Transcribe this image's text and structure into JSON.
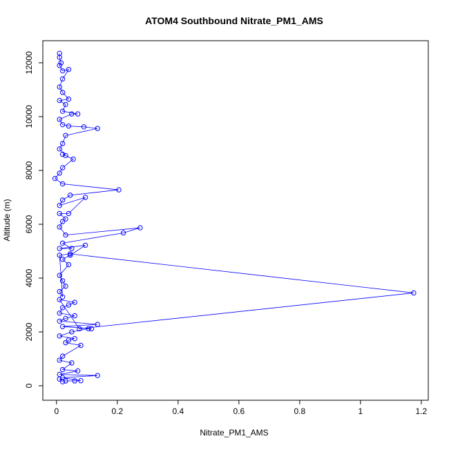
{
  "chart_data": {
    "type": "line",
    "title": "ATOM4 Southbound Nitrate_PM1_AMS",
    "x_label": "Nitrate_PM1_AMS",
    "y_label": "Altitude (m)",
    "series": [
      {
        "color": "#0000ff",
        "x": [
          0.02,
          0.01,
          0.03,
          0.06,
          0.08,
          0.02,
          0.135,
          0.01,
          0.07,
          0.02,
          0.05,
          0.01,
          0.02,
          0.08,
          0.03,
          0.04,
          0.06,
          0.01,
          0.05,
          0.105,
          0.115,
          0.02,
          0.135,
          0.01,
          0.03,
          0.06,
          0.01,
          0.02,
          0.04,
          0.06,
          0.01,
          0.075,
          1.175,
          0.045,
          0.01,
          0.02,
          0.01,
          0.03,
          0.02,
          0.01,
          0.04,
          0.02,
          0.045,
          0.095,
          0.01,
          0.05,
          0.02,
          0.22,
          0.275,
          0.03,
          0.01,
          0.02,
          0.03,
          0.01,
          0.04,
          0.095,
          0.01,
          0.02,
          0.045,
          0.205,
          0.02,
          -0.005,
          0.01,
          0.02,
          0.055,
          0.02,
          0.03,
          0.01,
          0.02,
          0.03,
          0.135,
          0.09,
          0.04,
          0.02,
          0.01,
          0.05,
          0.07,
          0.02,
          0.03,
          0.01,
          0.04,
          0.02,
          0.01,
          0.02,
          0.04,
          0.02,
          0.01,
          0.015,
          0.01,
          0.01
        ],
        "values": [
          150,
          250,
          180,
          180,
          190,
          300,
          380,
          420,
          550,
          600,
          850,
          950,
          1100,
          1500,
          1600,
          1700,
          1750,
          1850,
          2000,
          2120,
          2120,
          2200,
          2280,
          2400,
          2500,
          2600,
          2700,
          2900,
          3000,
          3100,
          3200,
          2120,
          3450,
          4900,
          4850,
          3300,
          3500,
          3700,
          3900,
          4100,
          4500,
          4700,
          4850,
          5220,
          5100,
          5100,
          5300,
          5680,
          5870,
          5600,
          5900,
          6100,
          6200,
          6400,
          6400,
          7000,
          6700,
          6900,
          7080,
          7280,
          7500,
          7700,
          7900,
          8100,
          8420,
          8600,
          8550,
          8800,
          9000,
          9300,
          9560,
          9620,
          9650,
          9700,
          9900,
          10100,
          10100,
          10200,
          10450,
          10600,
          10650,
          10900,
          11100,
          11400,
          11750,
          11700,
          11900,
          12000,
          12200,
          12350
        ]
      }
    ],
    "xlim": [
      -0.045,
      1.223
    ],
    "ylim": [
      -538,
      12820
    ],
    "xticks": [
      0.0,
      0.2,
      0.4,
      0.6,
      0.8,
      1.0,
      1.2
    ],
    "yticks": [
      0,
      2000,
      4000,
      6000,
      8000,
      10000,
      12000
    ]
  }
}
